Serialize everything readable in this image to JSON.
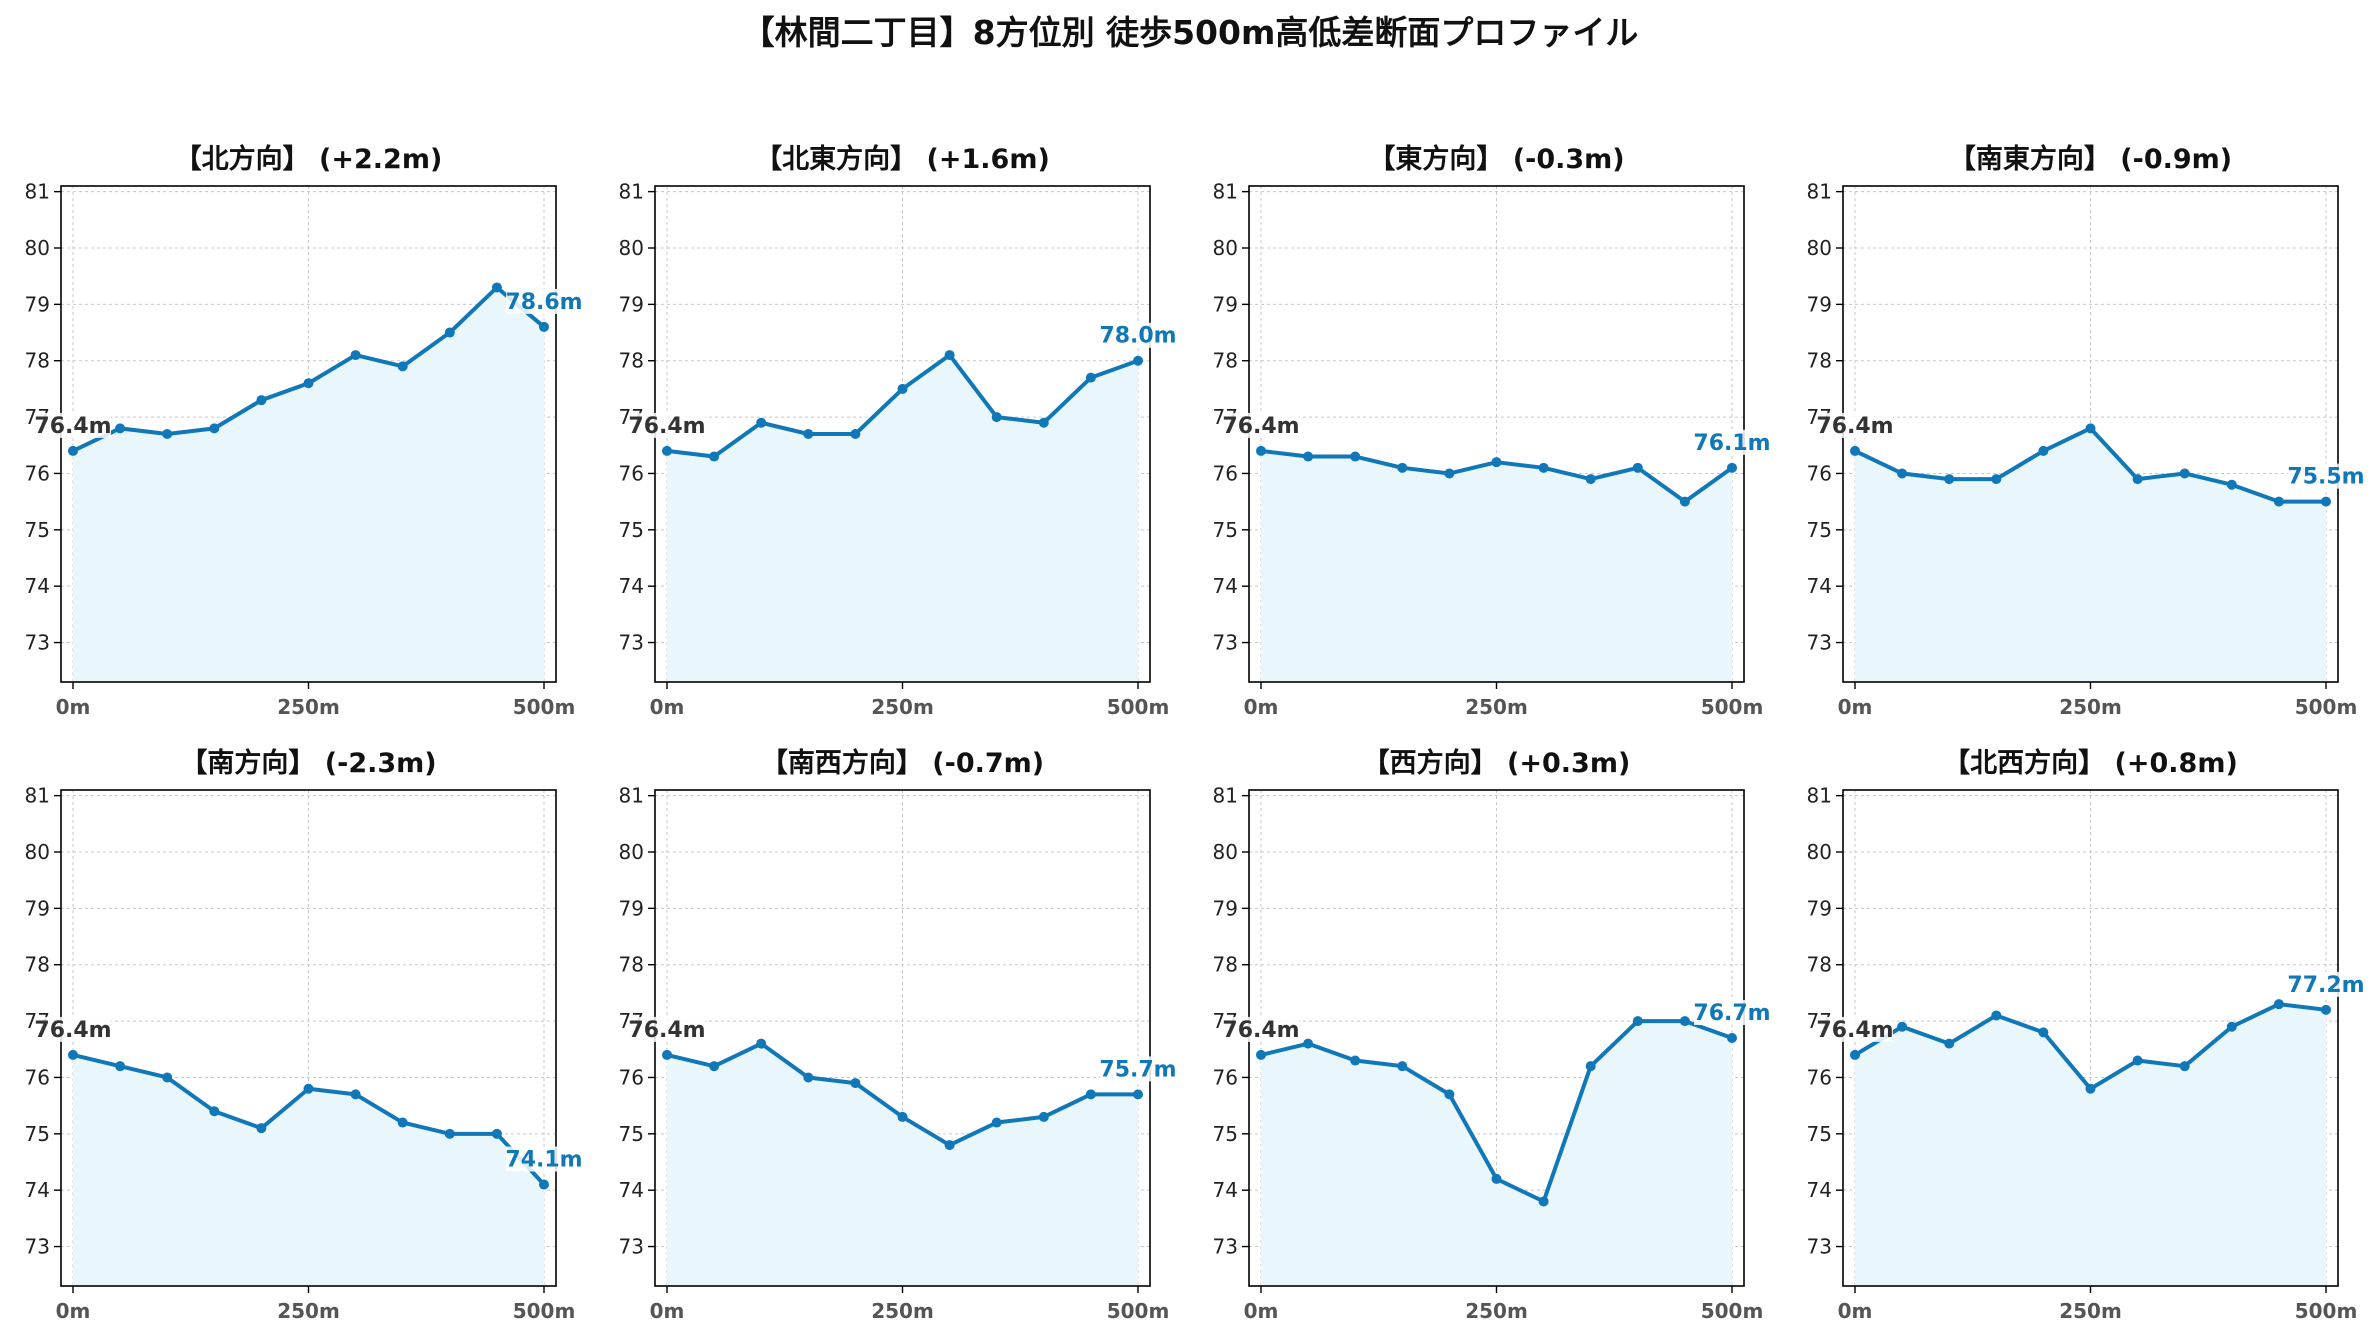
{
  "figure": {
    "title": "【林間二丁目】8方位別 徒歩500m高低差断面プロファイル",
    "line_color": "#1077b8",
    "fill_color": "#e9f6fb",
    "grid_color": "#c8c8c8",
    "start_label_color": "#333333"
  },
  "chart_data": [
    {
      "type": "area",
      "title": "【北方向】 (+2.2m)",
      "x": [
        0,
        50,
        100,
        150,
        200,
        250,
        300,
        350,
        400,
        450,
        500
      ],
      "values": [
        76.4,
        76.8,
        76.7,
        76.8,
        77.3,
        77.6,
        78.1,
        77.9,
        78.5,
        79.3,
        78.6
      ],
      "start_label": "76.4m",
      "end_label": "78.6m",
      "ylim": [
        72.3,
        81.1
      ],
      "yticks": [
        73,
        74,
        75,
        76,
        77,
        78,
        79,
        80,
        81
      ],
      "xticks": [
        {
          "v": 0,
          "label": "0m"
        },
        {
          "v": 250,
          "label": "250m"
        },
        {
          "v": 500,
          "label": "500m"
        }
      ],
      "grid": true
    },
    {
      "type": "area",
      "title": "【北東方向】 (+1.6m)",
      "x": [
        0,
        50,
        100,
        150,
        200,
        250,
        300,
        350,
        400,
        450,
        500
      ],
      "values": [
        76.4,
        76.3,
        76.9,
        76.7,
        76.7,
        77.5,
        78.1,
        77.0,
        76.9,
        77.7,
        78.0
      ],
      "start_label": "76.4m",
      "end_label": "78.0m",
      "ylim": [
        72.3,
        81.1
      ],
      "yticks": [
        73,
        74,
        75,
        76,
        77,
        78,
        79,
        80,
        81
      ],
      "xticks": [
        {
          "v": 0,
          "label": "0m"
        },
        {
          "v": 250,
          "label": "250m"
        },
        {
          "v": 500,
          "label": "500m"
        }
      ],
      "grid": true
    },
    {
      "type": "area",
      "title": "【東方向】 (-0.3m)",
      "x": [
        0,
        50,
        100,
        150,
        200,
        250,
        300,
        350,
        400,
        450,
        500
      ],
      "values": [
        76.4,
        76.3,
        76.3,
        76.1,
        76.0,
        76.2,
        76.1,
        75.9,
        76.1,
        75.5,
        76.1
      ],
      "start_label": "76.4m",
      "end_label": "76.1m",
      "ylim": [
        72.3,
        81.1
      ],
      "yticks": [
        73,
        74,
        75,
        76,
        77,
        78,
        79,
        80,
        81
      ],
      "xticks": [
        {
          "v": 0,
          "label": "0m"
        },
        {
          "v": 250,
          "label": "250m"
        },
        {
          "v": 500,
          "label": "500m"
        }
      ],
      "grid": true
    },
    {
      "type": "area",
      "title": "【南東方向】 (-0.9m)",
      "x": [
        0,
        50,
        100,
        150,
        200,
        250,
        300,
        350,
        400,
        450,
        500
      ],
      "values": [
        76.4,
        76.0,
        75.9,
        75.9,
        76.4,
        76.8,
        75.9,
        76.0,
        75.8,
        75.5,
        75.5
      ],
      "start_label": "76.4m",
      "end_label": "75.5m",
      "ylim": [
        72.3,
        81.1
      ],
      "yticks": [
        73,
        74,
        75,
        76,
        77,
        78,
        79,
        80,
        81
      ],
      "xticks": [
        {
          "v": 0,
          "label": "0m"
        },
        {
          "v": 250,
          "label": "250m"
        },
        {
          "v": 500,
          "label": "500m"
        }
      ],
      "grid": true
    },
    {
      "type": "area",
      "title": "【南方向】 (-2.3m)",
      "x": [
        0,
        50,
        100,
        150,
        200,
        250,
        300,
        350,
        400,
        450,
        500
      ],
      "values": [
        76.4,
        76.2,
        76.0,
        75.4,
        75.1,
        75.8,
        75.7,
        75.2,
        75.0,
        75.0,
        74.1
      ],
      "start_label": "76.4m",
      "end_label": "74.1m",
      "ylim": [
        72.3,
        81.1
      ],
      "yticks": [
        73,
        74,
        75,
        76,
        77,
        78,
        79,
        80,
        81
      ],
      "xticks": [
        {
          "v": 0,
          "label": "0m"
        },
        {
          "v": 250,
          "label": "250m"
        },
        {
          "v": 500,
          "label": "500m"
        }
      ],
      "grid": true
    },
    {
      "type": "area",
      "title": "【南西方向】 (-0.7m)",
      "x": [
        0,
        50,
        100,
        150,
        200,
        250,
        300,
        350,
        400,
        450,
        500
      ],
      "values": [
        76.4,
        76.2,
        76.6,
        76.0,
        75.9,
        75.3,
        74.8,
        75.2,
        75.3,
        75.7,
        75.7
      ],
      "start_label": "76.4m",
      "end_label": "75.7m",
      "ylim": [
        72.3,
        81.1
      ],
      "yticks": [
        73,
        74,
        75,
        76,
        77,
        78,
        79,
        80,
        81
      ],
      "xticks": [
        {
          "v": 0,
          "label": "0m"
        },
        {
          "v": 250,
          "label": "250m"
        },
        {
          "v": 500,
          "label": "500m"
        }
      ],
      "grid": true
    },
    {
      "type": "area",
      "title": "【西方向】 (+0.3m)",
      "x": [
        0,
        50,
        100,
        150,
        200,
        250,
        300,
        350,
        400,
        450,
        500
      ],
      "values": [
        76.4,
        76.6,
        76.3,
        76.2,
        75.7,
        74.2,
        73.8,
        76.2,
        77.0,
        77.0,
        76.7
      ],
      "start_label": "76.4m",
      "end_label": "76.7m",
      "ylim": [
        72.3,
        81.1
      ],
      "yticks": [
        73,
        74,
        75,
        76,
        77,
        78,
        79,
        80,
        81
      ],
      "xticks": [
        {
          "v": 0,
          "label": "0m"
        },
        {
          "v": 250,
          "label": "250m"
        },
        {
          "v": 500,
          "label": "500m"
        }
      ],
      "grid": true
    },
    {
      "type": "area",
      "title": "【北西方向】 (+0.8m)",
      "x": [
        0,
        50,
        100,
        150,
        200,
        250,
        300,
        350,
        400,
        450,
        500
      ],
      "values": [
        76.4,
        76.9,
        76.6,
        77.1,
        76.8,
        75.8,
        76.3,
        76.2,
        76.9,
        77.3,
        77.2
      ],
      "start_label": "76.4m",
      "end_label": "77.2m",
      "ylim": [
        72.3,
        81.1
      ],
      "yticks": [
        73,
        74,
        75,
        76,
        77,
        78,
        79,
        80,
        81
      ],
      "xticks": [
        {
          "v": 0,
          "label": "0m"
        },
        {
          "v": 250,
          "label": "250m"
        },
        {
          "v": 500,
          "label": "500m"
        }
      ],
      "grid": true
    }
  ]
}
